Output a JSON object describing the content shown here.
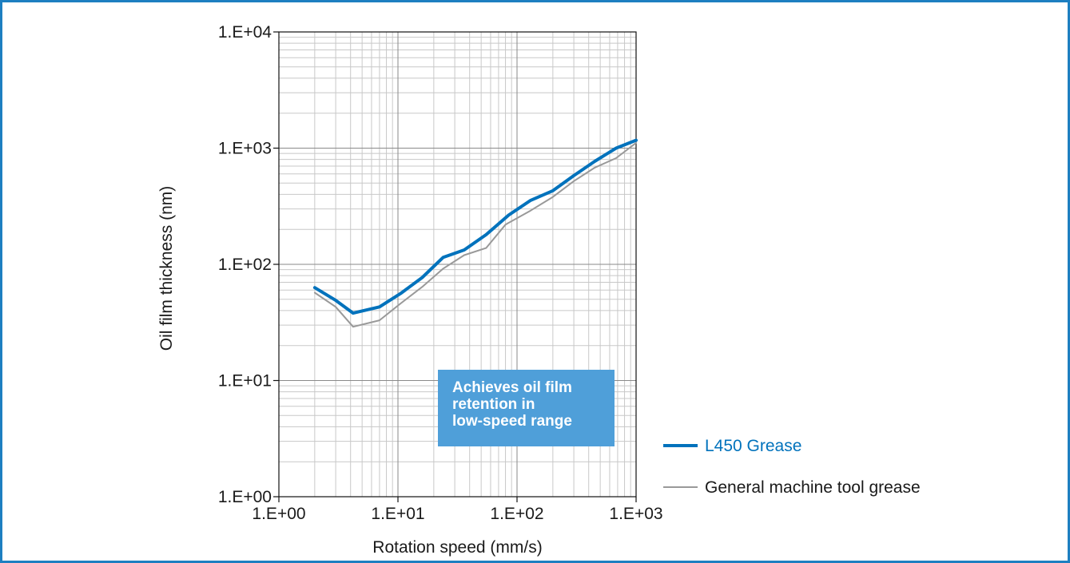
{
  "chart_data": {
    "type": "line",
    "x_scale": "log",
    "y_scale": "log",
    "xlim": [
      1,
      1000
    ],
    "ylim": [
      1,
      10000
    ],
    "xlabel": "Rotation speed (mm/s)",
    "ylabel": "Oil film thickness (nm)",
    "x_tick_labels": [
      "1.E+00",
      "1.E+01",
      "1.E+02",
      "1.E+03"
    ],
    "y_tick_labels": [
      "1.E+00",
      "1.E+01",
      "1.E+02",
      "1.E+03",
      "1.E+04"
    ],
    "grid": true,
    "legend_position": "bottom-right",
    "series": [
      {
        "name": "L450 Grease",
        "color": "#0072bc",
        "x": [
          2.0,
          3.0,
          4.2,
          7.0,
          10.5,
          16.0,
          24.0,
          36.0,
          55.0,
          85.0,
          130.0,
          200.0,
          300.0,
          450.0,
          680.0,
          1000.0
        ],
        "y": [
          63,
          49,
          38,
          43,
          56,
          77,
          115,
          133,
          180,
          265,
          355,
          430,
          580,
          770,
          1000,
          1170
        ]
      },
      {
        "name": "General machine tool grease",
        "color": "#999999",
        "x": [
          2.0,
          3.0,
          4.2,
          7.0,
          10.5,
          16.0,
          24.0,
          36.0,
          55.0,
          80.0,
          130.0,
          200.0,
          300.0,
          450.0,
          680.0,
          1000.0
        ],
        "y": [
          57,
          43,
          29,
          33,
          46,
          64,
          92,
          120,
          138,
          220,
          290,
          380,
          520,
          680,
          820,
          1110
        ]
      }
    ],
    "annotation": [
      "Achieves oil film",
      "retention in",
      "low-speed range"
    ]
  }
}
